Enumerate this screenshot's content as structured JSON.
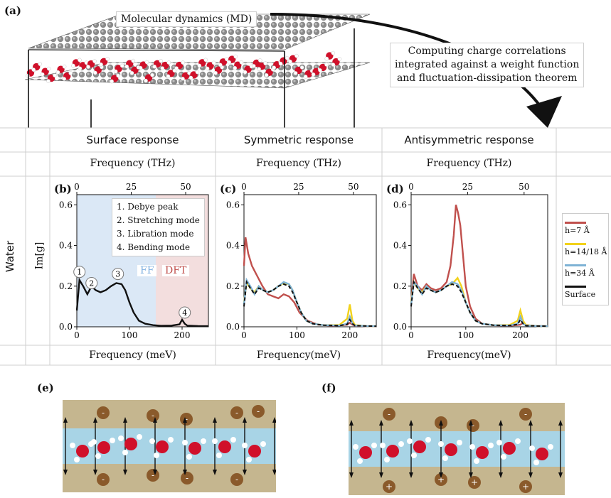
{
  "panel_labels": {
    "a": "(a)",
    "b": "(b)",
    "c": "(c)",
    "d": "(d)",
    "e": "(e)",
    "f": "(f)"
  },
  "top": {
    "md_label": "Molecular dynamics (MD)",
    "computing_label_lines": [
      "Computing charge correlations",
      "integrated against a weight function",
      "and fluctuation-dissipation theorem"
    ]
  },
  "table": {
    "row_label": "Water",
    "y_label": "Im[g]",
    "columns": [
      {
        "header": "Surface response",
        "top_axis": "Frequency (THz)",
        "bottom_axis": "Frequency (meV)"
      },
      {
        "header": "Symmetric response",
        "top_axis": "Frequency (THz)",
        "bottom_axis": "Frequency(meV)"
      },
      {
        "header": "Antisymmetric response",
        "top_axis": "Frequency (THz)",
        "bottom_axis": "Frequency(meV)"
      }
    ]
  },
  "panel_b_notes": {
    "legend_items": [
      "1. Debye peak",
      "2. Stretching mode",
      "3. Libration mode",
      "4. Bending mode"
    ],
    "ff_label": "FF",
    "dft_label": "DFT",
    "markers": [
      "1",
      "2",
      "3",
      "4"
    ],
    "colors": {
      "ff": "#dbe8f6",
      "dft": "#f3dede",
      "ff_text": "#7fb0e0",
      "dft_text": "#c0504d"
    }
  },
  "legend": {
    "items": [
      {
        "label": "h=7 Å",
        "color": "#c0504d"
      },
      {
        "label": "h=14/18 Å",
        "color": "#f2d21b"
      },
      {
        "label": "h=34 Å",
        "color": "#7fb3d5"
      },
      {
        "label": "Surface",
        "color": "#111111"
      }
    ]
  },
  "chart_data": [
    {
      "type": "line",
      "panel": "(b)",
      "xlabel": "Frequency (meV)",
      "ylabel": "Im[g]",
      "xlim": [
        0,
        250
      ],
      "ylim": [
        0,
        0.65
      ],
      "x_ticks": [
        0,
        100,
        200
      ],
      "y_ticks": [
        0.0,
        0.2,
        0.4,
        0.6
      ],
      "top_ticks": [
        0,
        25,
        50
      ],
      "series": [
        {
          "name": "Surface",
          "x": [
            0,
            5,
            12,
            20,
            28,
            36,
            45,
            55,
            65,
            75,
            85,
            92,
            100,
            108,
            118,
            130,
            145,
            160,
            180,
            195,
            200,
            205,
            210,
            230,
            250
          ],
          "y": [
            0.08,
            0.23,
            0.2,
            0.16,
            0.2,
            0.18,
            0.17,
            0.18,
            0.2,
            0.215,
            0.21,
            0.18,
            0.12,
            0.07,
            0.03,
            0.015,
            0.008,
            0.005,
            0.006,
            0.012,
            0.035,
            0.015,
            0.006,
            0.004,
            0.003
          ]
        }
      ]
    },
    {
      "type": "line",
      "panel": "(c)",
      "xlabel": "Frequency(meV)",
      "xlim": [
        0,
        250
      ],
      "ylim": [
        0,
        0.65
      ],
      "x_ticks": [
        0,
        100,
        200
      ],
      "y_ticks": [
        0.0,
        0.2,
        0.4,
        0.6
      ],
      "top_ticks": [
        0,
        25,
        50
      ],
      "series": [
        {
          "name": "h=7 Å",
          "x": [
            0,
            3,
            8,
            15,
            25,
            35,
            45,
            55,
            65,
            75,
            85,
            95,
            105,
            120,
            140,
            170,
            195,
            200,
            205,
            210,
            230,
            250
          ],
          "y": [
            0.3,
            0.44,
            0.36,
            0.3,
            0.25,
            0.2,
            0.16,
            0.15,
            0.14,
            0.16,
            0.15,
            0.12,
            0.07,
            0.03,
            0.01,
            0.005,
            0.01,
            0.02,
            0.01,
            0.005,
            0.003,
            0.002
          ]
        },
        {
          "name": "h=14/18 Å",
          "x": [
            0,
            5,
            12,
            20,
            28,
            36,
            45,
            55,
            65,
            75,
            85,
            92,
            100,
            108,
            118,
            130,
            150,
            180,
            195,
            200,
            205,
            210,
            230,
            250
          ],
          "y": [
            0.12,
            0.22,
            0.19,
            0.17,
            0.2,
            0.18,
            0.17,
            0.18,
            0.2,
            0.215,
            0.21,
            0.18,
            0.12,
            0.07,
            0.03,
            0.015,
            0.008,
            0.008,
            0.04,
            0.11,
            0.03,
            0.008,
            0.004,
            0.003
          ]
        },
        {
          "name": "h=34 Å",
          "x": [
            0,
            5,
            12,
            20,
            28,
            36,
            45,
            55,
            65,
            75,
            85,
            92,
            100,
            108,
            118,
            130,
            150,
            180,
            195,
            200,
            205,
            210,
            230,
            250
          ],
          "y": [
            0.11,
            0.23,
            0.2,
            0.16,
            0.2,
            0.18,
            0.17,
            0.18,
            0.2,
            0.22,
            0.21,
            0.18,
            0.12,
            0.07,
            0.03,
            0.015,
            0.008,
            0.006,
            0.015,
            0.05,
            0.015,
            0.006,
            0.004,
            0.003
          ]
        },
        {
          "name": "Surface",
          "x": [
            0,
            5,
            12,
            20,
            28,
            36,
            45,
            55,
            65,
            75,
            85,
            92,
            100,
            108,
            118,
            130,
            150,
            180,
            195,
            200,
            205,
            210,
            230,
            250
          ],
          "y": [
            0.1,
            0.22,
            0.19,
            0.16,
            0.19,
            0.18,
            0.17,
            0.18,
            0.2,
            0.21,
            0.2,
            0.17,
            0.12,
            0.07,
            0.03,
            0.015,
            0.008,
            0.006,
            0.012,
            0.035,
            0.015,
            0.006,
            0.004,
            0.003
          ]
        }
      ]
    },
    {
      "type": "line",
      "panel": "(d)",
      "xlabel": "Frequency(meV)",
      "xlim": [
        0,
        250
      ],
      "ylim": [
        0,
        0.65
      ],
      "x_ticks": [
        0,
        100,
        200
      ],
      "y_ticks": [
        0.0,
        0.2,
        0.4,
        0.6
      ],
      "top_ticks": [
        0,
        25,
        50
      ],
      "series": [
        {
          "name": "h=7 Å",
          "x": [
            0,
            5,
            12,
            20,
            28,
            36,
            45,
            55,
            65,
            72,
            78,
            82,
            86,
            90,
            95,
            100,
            108,
            118,
            130,
            150,
            180,
            200,
            205,
            210,
            230,
            250
          ],
          "y": [
            0.12,
            0.26,
            0.2,
            0.18,
            0.21,
            0.19,
            0.18,
            0.19,
            0.22,
            0.3,
            0.45,
            0.6,
            0.56,
            0.5,
            0.35,
            0.2,
            0.1,
            0.04,
            0.015,
            0.008,
            0.005,
            0.01,
            0.02,
            0.008,
            0.004,
            0.003
          ]
        },
        {
          "name": "h=14/18 Å",
          "x": [
            0,
            5,
            12,
            20,
            28,
            36,
            45,
            55,
            65,
            75,
            85,
            92,
            100,
            108,
            118,
            130,
            150,
            180,
            195,
            200,
            205,
            210,
            230,
            250
          ],
          "y": [
            0.12,
            0.22,
            0.19,
            0.17,
            0.2,
            0.18,
            0.17,
            0.18,
            0.2,
            0.21,
            0.24,
            0.2,
            0.12,
            0.07,
            0.03,
            0.015,
            0.008,
            0.008,
            0.03,
            0.08,
            0.03,
            0.008,
            0.004,
            0.003
          ]
        },
        {
          "name": "h=34 Å",
          "x": [
            0,
            5,
            12,
            20,
            28,
            36,
            45,
            55,
            65,
            75,
            85,
            92,
            100,
            108,
            118,
            130,
            150,
            180,
            195,
            200,
            205,
            210,
            230,
            250
          ],
          "y": [
            0.11,
            0.22,
            0.2,
            0.16,
            0.2,
            0.18,
            0.17,
            0.18,
            0.2,
            0.22,
            0.21,
            0.18,
            0.12,
            0.07,
            0.03,
            0.015,
            0.008,
            0.006,
            0.015,
            0.05,
            0.015,
            0.006,
            0.004,
            0.003
          ]
        },
        {
          "name": "Surface",
          "x": [
            0,
            5,
            12,
            20,
            28,
            36,
            45,
            55,
            65,
            75,
            85,
            92,
            100,
            108,
            118,
            130,
            150,
            180,
            195,
            200,
            205,
            210,
            230,
            250
          ],
          "y": [
            0.1,
            0.22,
            0.19,
            0.16,
            0.19,
            0.18,
            0.17,
            0.18,
            0.2,
            0.21,
            0.2,
            0.17,
            0.12,
            0.07,
            0.03,
            0.015,
            0.008,
            0.006,
            0.012,
            0.035,
            0.015,
            0.006,
            0.004,
            0.003
          ]
        }
      ]
    }
  ],
  "bottom": {
    "e_charges": [
      "-",
      "-",
      "-",
      "-",
      "-",
      "-",
      "-",
      "-",
      "-"
    ],
    "f_charges": [
      "-",
      "-",
      "-",
      "-",
      "+",
      "+",
      "+",
      "+"
    ]
  }
}
